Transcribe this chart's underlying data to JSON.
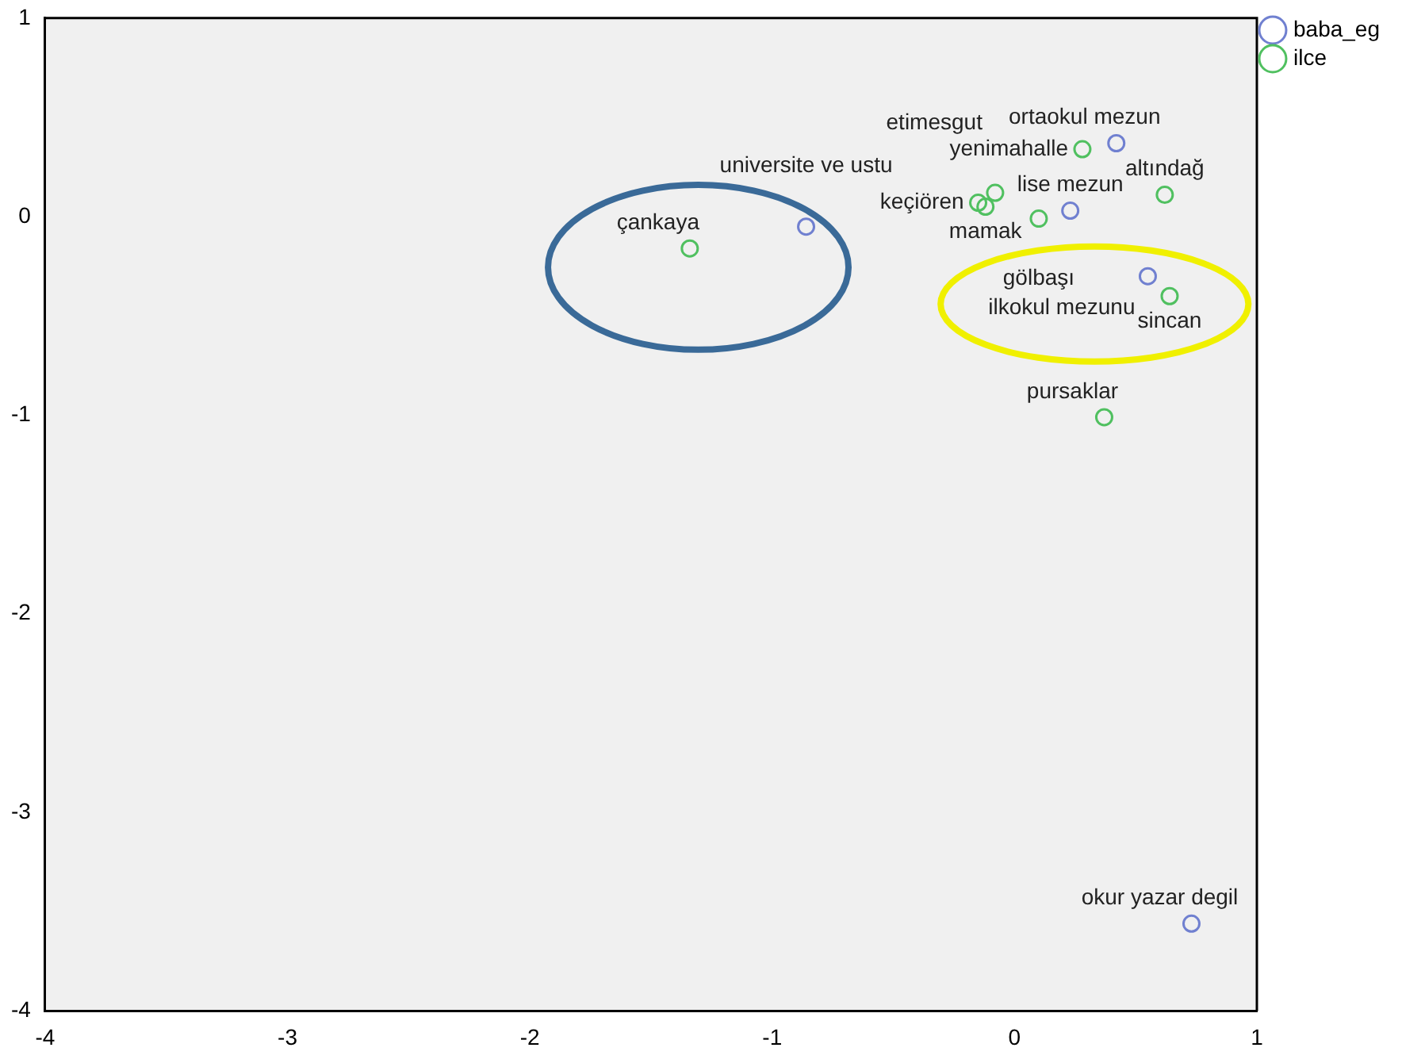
{
  "chart_data": {
    "type": "scatter",
    "marker": "circle",
    "legend": "top right",
    "grid": false,
    "xlim": [
      -4,
      1
    ],
    "xticks": [
      -4,
      -3,
      -2,
      -1,
      0,
      1
    ],
    "ylim": [
      -4,
      1
    ],
    "yticks": [
      -4,
      -3,
      -2,
      -1,
      0,
      1
    ],
    "series": [
      {
        "name": "baba_eg",
        "color": "#7080d0",
        "x": [
          -0.86,
          0.42,
          0.23,
          0.55,
          0.73
        ],
        "values": [
          -0.05,
          0.37,
          0.03,
          -0.3,
          -3.56
        ],
        "value_labels": [
          "universite ve ustu",
          "ortaokul mezun",
          "lise mezun",
          "ilkokul mezunu",
          "okur yazar degil"
        ]
      },
      {
        "name": "ilce",
        "color": "#50c060",
        "x": [
          -1.34,
          0.28,
          -0.08,
          -0.15,
          -0.12,
          0.1,
          0.62,
          0.64,
          0.37
        ],
        "values": [
          -0.16,
          0.34,
          0.12,
          0.07,
          0.05,
          -0.01,
          0.11,
          -0.4,
          -1.01
        ],
        "value_labels": [
          "çankaya",
          "yenimahalle",
          "etimesgut",
          "keçiören",
          "mamak",
          "gölbaşı",
          "altındağ",
          "sincan",
          "pursaklar"
        ]
      }
    ]
  }
}
